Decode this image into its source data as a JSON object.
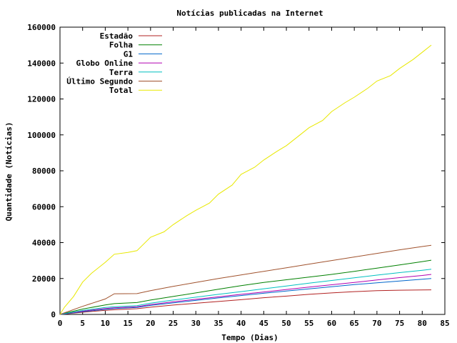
{
  "chart_data": {
    "type": "line",
    "title": "Notícias publicadas na Internet",
    "xlabel": "Tempo (Dias)",
    "ylabel": "Quantidade (Notícias)",
    "xlim": [
      0,
      85
    ],
    "ylim": [
      0,
      160000
    ],
    "xticks": [
      0,
      5,
      10,
      15,
      20,
      25,
      30,
      35,
      40,
      45,
      50,
      55,
      60,
      65,
      70,
      75,
      80,
      85
    ],
    "yticks": [
      0,
      20000,
      40000,
      60000,
      80000,
      100000,
      120000,
      140000,
      160000
    ],
    "grid": false,
    "legend_position": "top-left",
    "series": [
      {
        "name": "Estadão",
        "color": "#b22222",
        "x": [
          0,
          5,
          10,
          12,
          17,
          20,
          25,
          30,
          35,
          40,
          45,
          50,
          55,
          60,
          65,
          70,
          75,
          80,
          82
        ],
        "y": [
          0,
          1200,
          2300,
          2600,
          3200,
          4000,
          5200,
          6200,
          7200,
          8200,
          9300,
          10200,
          11200,
          12000,
          12700,
          13200,
          13500,
          13600,
          13700
        ]
      },
      {
        "name": "Folha",
        "color": "#008000",
        "x": [
          0,
          5,
          10,
          12,
          17,
          20,
          25,
          30,
          35,
          40,
          45,
          50,
          55,
          60,
          65,
          70,
          75,
          80,
          82
        ],
        "y": [
          0,
          3000,
          5300,
          6000,
          6600,
          8000,
          10000,
          12000,
          14000,
          16000,
          17800,
          19300,
          20800,
          22300,
          24000,
          25800,
          27600,
          29400,
          30200
        ]
      },
      {
        "name": "G1",
        "color": "#0066cc",
        "x": [
          0,
          5,
          10,
          12,
          17,
          20,
          25,
          30,
          35,
          40,
          45,
          50,
          55,
          60,
          65,
          70,
          75,
          80,
          82
        ],
        "y": [
          0,
          1500,
          2800,
          3300,
          3900,
          5000,
          6400,
          7800,
          9200,
          10500,
          11800,
          13000,
          14200,
          15400,
          16600,
          17600,
          18600,
          19600,
          20000
        ]
      },
      {
        "name": "Globo Online",
        "color": "#b000b0",
        "x": [
          0,
          5,
          10,
          12,
          17,
          20,
          25,
          30,
          35,
          40,
          45,
          50,
          55,
          60,
          65,
          70,
          75,
          80,
          82
        ],
        "y": [
          0,
          1800,
          3300,
          3700,
          4300,
          5500,
          7000,
          8400,
          9800,
          11200,
          12500,
          13900,
          15200,
          16500,
          17800,
          19200,
          20500,
          21700,
          22300
        ]
      },
      {
        "name": "Terra",
        "color": "#00c0c0",
        "x": [
          0,
          5,
          10,
          12,
          17,
          20,
          25,
          30,
          35,
          40,
          45,
          50,
          55,
          60,
          65,
          70,
          75,
          80,
          82
        ],
        "y": [
          0,
          2200,
          3900,
          4300,
          4900,
          6300,
          8000,
          9600,
          11200,
          12700,
          14300,
          15800,
          17400,
          18900,
          20400,
          21900,
          23300,
          24600,
          25200
        ]
      },
      {
        "name": "Último Segundo",
        "color": "#a0522d",
        "x": [
          0,
          5,
          10,
          12,
          17,
          20,
          25,
          30,
          35,
          40,
          45,
          50,
          55,
          60,
          65,
          70,
          75,
          80,
          82
        ],
        "y": [
          0,
          4500,
          8600,
          11500,
          11600,
          13200,
          15600,
          17800,
          20000,
          22000,
          24000,
          26000,
          28000,
          30000,
          32000,
          34000,
          36000,
          37800,
          38500
        ]
      },
      {
        "name": "Total",
        "color": "#e8e800",
        "x": [
          0,
          1,
          3,
          5,
          7,
          10,
          12,
          15,
          17,
          20,
          23,
          25,
          28,
          30,
          33,
          35,
          38,
          40,
          43,
          45,
          48,
          50,
          53,
          55,
          58,
          60,
          63,
          65,
          68,
          70,
          73,
          75,
          78,
          80,
          82
        ],
        "y": [
          0,
          4000,
          10000,
          18000,
          23000,
          29000,
          33500,
          34500,
          35500,
          43000,
          46000,
          50000,
          55000,
          58000,
          62000,
          67000,
          72000,
          78000,
          82000,
          86000,
          91000,
          94000,
          100000,
          104000,
          108000,
          113000,
          118000,
          121000,
          126000,
          130000,
          133000,
          137000,
          142000,
          146000,
          150000
        ]
      }
    ]
  }
}
